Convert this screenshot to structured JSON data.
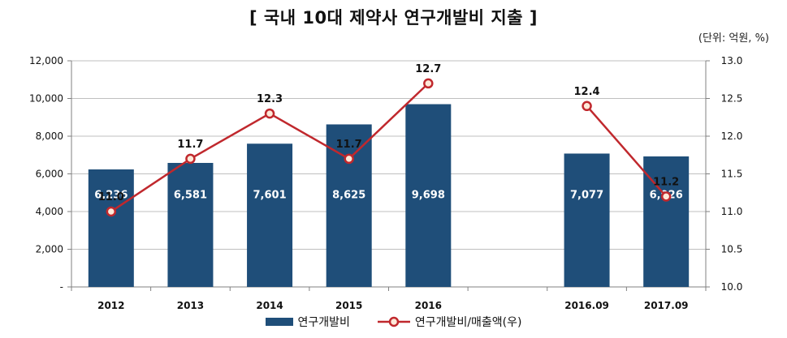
{
  "chart_data": {
    "type": "bar",
    "title": "[ 국내 10대 제약사 연구개발비 지출 ]",
    "unit_note": "(단위: 억원, %)",
    "categories": [
      "2012",
      "2013",
      "2014",
      "2015",
      "2016",
      "",
      "2016.09",
      "2017.09"
    ],
    "series": [
      {
        "name": "연구개발비",
        "kind": "bar",
        "axis": "left",
        "color": "#1f4e79",
        "values": [
          6236,
          6581,
          7601,
          8625,
          9698,
          null,
          7077,
          6926
        ],
        "labels": [
          "6,236",
          "6,581",
          "7,601",
          "8,625",
          "9,698",
          "",
          "7,077",
          "6,926"
        ]
      },
      {
        "name": "연구개발비/매출액(우)",
        "kind": "line",
        "axis": "right",
        "color": "#c0282d",
        "values": [
          11.0,
          11.7,
          12.3,
          11.7,
          12.7,
          null,
          12.4,
          11.2
        ],
        "labels": [
          "11.0",
          "11.7",
          "12.3",
          "11.7",
          "12.7",
          "",
          "12.4",
          "11.2"
        ]
      }
    ],
    "y_left": {
      "ylim": [
        0,
        12000
      ],
      "ticks": [
        0,
        2000,
        4000,
        6000,
        8000,
        10000,
        12000
      ],
      "tick_labels": [
        "-",
        "2,000",
        "4,000",
        "6,000",
        "8,000",
        "10,000",
        "12,000"
      ]
    },
    "y_right": {
      "ylim": [
        10.0,
        13.0
      ],
      "ticks": [
        10.0,
        10.5,
        11.0,
        11.5,
        12.0,
        12.5,
        13.0
      ],
      "tick_labels": [
        "10.0",
        "10.5",
        "11.0",
        "11.5",
        "12.0",
        "12.5",
        "13.0"
      ]
    },
    "grid": true,
    "legend_position": "bottom"
  }
}
